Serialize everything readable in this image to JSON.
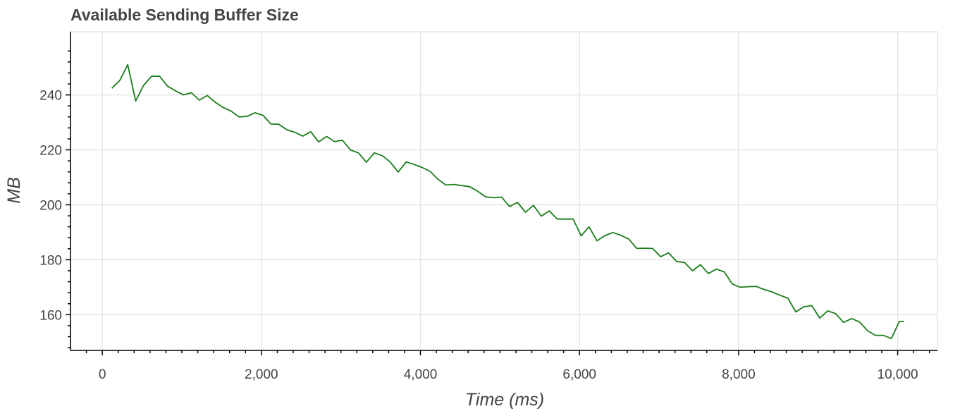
{
  "chart_data": {
    "type": "line",
    "title": "Available Sending Buffer Size",
    "xlabel": "Time (ms)",
    "ylabel": "MB",
    "xlim": [
      -400,
      10500
    ],
    "ylim": [
      147,
      263
    ],
    "x_ticks": [
      0,
      2000,
      4000,
      6000,
      8000,
      10000
    ],
    "x_tick_labels": [
      "0",
      "2,000",
      "4,000",
      "6,000",
      "8,000",
      "10,000"
    ],
    "y_ticks": [
      160,
      180,
      200,
      220,
      240
    ],
    "y_tick_labels": [
      "160",
      "180",
      "200",
      "220",
      "240"
    ],
    "grid": true,
    "legend": "none",
    "series": [
      {
        "color": "#1a7d1a",
        "x": [
          120,
          220,
          320,
          420,
          520,
          620,
          720,
          820,
          920,
          1020,
          1120,
          1220,
          1320,
          1420,
          1520,
          1620,
          1720,
          1820,
          1920,
          2020,
          2120,
          2220,
          2320,
          2420,
          2520,
          2620,
          2720,
          2820,
          2920,
          3020,
          3120,
          3220,
          3320,
          3420,
          3520,
          3620,
          3720,
          3820,
          3920,
          4020,
          4120,
          4220,
          4320,
          4420,
          4520,
          4620,
          4720,
          4820,
          4920,
          5020,
          5120,
          5220,
          5320,
          5420,
          5520,
          5620,
          5720,
          5820,
          5920,
          6020,
          6120,
          6220,
          6320,
          6420,
          6520,
          6620,
          6720,
          6820,
          6920,
          7020,
          7120,
          7220,
          7320,
          7420,
          7520,
          7620,
          7720,
          7820,
          7920,
          8020,
          8120,
          8220,
          8320,
          8420,
          8520,
          8620,
          8720,
          8820,
          8920,
          9020,
          9120,
          9220,
          9320,
          9420,
          9520,
          9620,
          9720,
          9820,
          9920,
          10020,
          10080
        ],
        "values": [
          242.4,
          245.3,
          251.0,
          237.8,
          243.5,
          246.8,
          246.8,
          243.2,
          241.5,
          240.0,
          240.8,
          238.1,
          239.8,
          237.3,
          235.4,
          234.1,
          232.0,
          232.2,
          233.5,
          232.6,
          229.4,
          229.3,
          227.3,
          226.4,
          225.0,
          226.6,
          222.9,
          224.9,
          223.0,
          223.5,
          220.0,
          218.9,
          215.5,
          218.9,
          217.9,
          215.6,
          211.9,
          215.6,
          214.7,
          213.6,
          212.2,
          209.3,
          207.2,
          207.4,
          207.0,
          206.6,
          204.9,
          202.9,
          202.6,
          202.8,
          199.4,
          200.9,
          197.3,
          199.8,
          195.9,
          197.8,
          194.8,
          194.8,
          194.8,
          188.7,
          192.0,
          186.9,
          188.8,
          189.9,
          188.9,
          187.5,
          184.1,
          184.2,
          184.1,
          181.1,
          182.5,
          179.4,
          179.0,
          176.0,
          178.2,
          175.0,
          176.6,
          175.6,
          171.2,
          170.0,
          170.2,
          170.3,
          169.2,
          168.3,
          167.1,
          166.0,
          161.0,
          162.9,
          163.3,
          158.8,
          161.4,
          160.4,
          157.2,
          158.6,
          157.4,
          154.2,
          152.5,
          152.5,
          151.3,
          157.5,
          157.5
        ]
      }
    ]
  }
}
